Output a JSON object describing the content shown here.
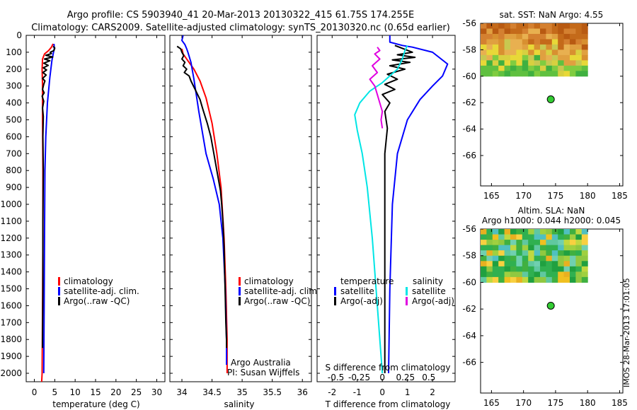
{
  "header": {
    "line1": "Argo profile: CS 5903940_41 20-Mar-2013 20130322_415 61.75S 174.255E",
    "line2": "Climatology: CARS2009. Satellite-adjusted climatology: synTS_20130320.nc (0.65d earlier)"
  },
  "credits": {
    "agency": "Argo Australia",
    "pi": "PI: Susan Wijffels",
    "stamp": "IMOS 28-Mar-2013 17:01:05"
  },
  "colors": {
    "climatology": "#ff0000",
    "satellite": "#0000ff",
    "argo": "#000000",
    "sal_satellite": "#00e5e5",
    "sal_argo": "#e000e0",
    "dot": "#33cc33"
  },
  "chart_data": [
    {
      "type": "line",
      "id": "temperature",
      "xlabel": "temperature (deg C)",
      "xlim": [
        -2,
        32
      ],
      "ylim": [
        2050,
        0
      ],
      "xticks": [
        "0",
        "5",
        "10",
        "15",
        "20",
        "25",
        "30"
      ],
      "xtick_values": [
        0,
        5,
        10,
        15,
        20,
        25,
        30
      ],
      "yticks": [
        "0",
        "100",
        "200",
        "300",
        "400",
        "500",
        "600",
        "700",
        "800",
        "900",
        "1000",
        "1100",
        "1200",
        "1300",
        "1400",
        "1500",
        "1600",
        "1700",
        "1800",
        "1900",
        "2000"
      ],
      "ytick_values": [
        0,
        100,
        200,
        300,
        400,
        500,
        600,
        700,
        800,
        900,
        1000,
        1100,
        1200,
        1300,
        1400,
        1500,
        1600,
        1700,
        1800,
        1900,
        2000
      ],
      "legend": [
        "climatology",
        "satellite-adj. clim.",
        "Argo(..raw -QC)"
      ],
      "series": [
        {
          "name": "climatology",
          "color": "#ff0000",
          "points": [
            [
              4.6,
              50
            ],
            [
              4.2,
              70
            ],
            [
              3.5,
              90
            ],
            [
              2.5,
              110
            ],
            [
              2.0,
              140
            ],
            [
              1.9,
              200
            ],
            [
              2.0,
              300
            ],
            [
              2.0,
              500
            ],
            [
              2.1,
              800
            ],
            [
              2.1,
              1200
            ],
            [
              2.0,
              1600
            ],
            [
              1.9,
              2000
            ],
            [
              1.8,
              2050
            ]
          ]
        },
        {
          "name": "satellite-adj. clim.",
          "color": "#0000ff",
          "points": [
            [
              4.8,
              50
            ],
            [
              4.9,
              75
            ],
            [
              4.7,
              100
            ],
            [
              4.3,
              150
            ],
            [
              3.8,
              250
            ],
            [
              3.2,
              400
            ],
            [
              2.8,
              600
            ],
            [
              2.6,
              800
            ],
            [
              2.5,
              1200
            ],
            [
              2.4,
              1600
            ],
            [
              2.3,
              2000
            ]
          ]
        },
        {
          "name": "Argo(..raw -QC)",
          "color": "#000000",
          "points": [
            [
              4.6,
              65
            ],
            [
              5.0,
              75
            ],
            [
              4.8,
              90
            ],
            [
              3.9,
              100
            ],
            [
              4.2,
              108
            ],
            [
              2.8,
              118
            ],
            [
              4.5,
              128
            ],
            [
              2.5,
              140
            ],
            [
              3.8,
              150
            ],
            [
              2.3,
              165
            ],
            [
              3.4,
              178
            ],
            [
              2.2,
              192
            ],
            [
              3.0,
              205
            ],
            [
              2.1,
              220
            ],
            [
              2.9,
              235
            ],
            [
              2.0,
              255
            ],
            [
              2.6,
              270
            ],
            [
              2.3,
              290
            ],
            [
              2.0,
              320
            ],
            [
              2.4,
              340
            ],
            [
              1.9,
              360
            ],
            [
              2.3,
              390
            ],
            [
              2.0,
              430
            ],
            [
              2.2,
              480
            ],
            [
              2.1,
              600
            ],
            [
              2.2,
              800
            ],
            [
              2.1,
              1100
            ],
            [
              2.1,
              1500
            ],
            [
              2.0,
              1800
            ],
            [
              2.0,
              1850
            ]
          ]
        }
      ]
    },
    {
      "type": "line",
      "id": "salinity",
      "xlabel": "salinity",
      "xlim": [
        33.8,
        36.15
      ],
      "ylim": [
        2050,
        0
      ],
      "xticks": [
        "34",
        "34.5",
        "35",
        "35.5",
        "36"
      ],
      "xtick_values": [
        34,
        34.5,
        35,
        35.5,
        36
      ],
      "legend": [
        "climatology",
        "satellite-adj. clim.",
        "Argo(..raw -QC)"
      ],
      "series": [
        {
          "name": "climatology",
          "color": "#ff0000",
          "points": [
            [
              34.0,
              80
            ],
            [
              34.02,
              110
            ],
            [
              34.1,
              150
            ],
            [
              34.2,
              200
            ],
            [
              34.3,
              270
            ],
            [
              34.4,
              370
            ],
            [
              34.5,
              520
            ],
            [
              34.58,
              700
            ],
            [
              34.65,
              900
            ],
            [
              34.7,
              1200
            ],
            [
              34.73,
              1500
            ],
            [
              34.75,
              1800
            ],
            [
              34.75,
              2000
            ]
          ]
        },
        {
          "name": "satellite-adj. clim.",
          "color": "#0000ff",
          "points": [
            [
              34.02,
              0
            ],
            [
              34.0,
              30
            ],
            [
              34.05,
              55
            ],
            [
              34.08,
              80
            ],
            [
              34.1,
              100
            ],
            [
              34.15,
              160
            ],
            [
              34.2,
              260
            ],
            [
              34.28,
              450
            ],
            [
              34.4,
              700
            ],
            [
              34.52,
              850
            ],
            [
              34.62,
              1000
            ],
            [
              34.68,
              1200
            ],
            [
              34.72,
              1500
            ],
            [
              34.74,
              1800
            ],
            [
              34.74,
              1950
            ]
          ]
        },
        {
          "name": "Argo(..raw -QC)",
          "color": "#000000",
          "points": [
            [
              33.92,
              65
            ],
            [
              33.98,
              80
            ],
            [
              34.0,
              100
            ],
            [
              34.03,
              120
            ],
            [
              34.0,
              140
            ],
            [
              34.05,
              160
            ],
            [
              34.02,
              180
            ],
            [
              34.08,
              200
            ],
            [
              34.04,
              220
            ],
            [
              34.12,
              240
            ],
            [
              34.15,
              270
            ],
            [
              34.22,
              320
            ],
            [
              34.3,
              380
            ],
            [
              34.35,
              440
            ],
            [
              34.42,
              520
            ],
            [
              34.48,
              600
            ],
            [
              34.52,
              680
            ],
            [
              34.56,
              760
            ],
            [
              34.6,
              840
            ],
            [
              34.64,
              920
            ],
            [
              34.66,
              1000
            ],
            [
              34.68,
              1100
            ],
            [
              34.7,
              1250
            ],
            [
              34.71,
              1400
            ],
            [
              34.72,
              1550
            ],
            [
              34.73,
              1700
            ],
            [
              34.74,
              1800
            ],
            [
              34.74,
              1850
            ]
          ]
        }
      ]
    },
    {
      "type": "line",
      "id": "difference",
      "xlabel": "T difference from climatology",
      "xlabel_top": "S difference from climatology",
      "xlim": [
        -2.6,
        2.9
      ],
      "ylim": [
        2050,
        0
      ],
      "xticks": [
        "-2",
        "-1",
        "0",
        "1",
        "2"
      ],
      "xtick_values": [
        -2,
        -1,
        0,
        1,
        2
      ],
      "sticks": [
        "-0.5",
        "-0.25",
        "0",
        "0.25",
        "0.5"
      ],
      "stick_positions_t": [
        -1.85,
        -0.92,
        0,
        0.92,
        1.85
      ],
      "legend_temperature_title": "temperature",
      "legend_salinity_title": "salinity",
      "legend": [
        "satellite",
        "Argo(-adj)",
        "satellite",
        "Argo(-adj)"
      ],
      "series": [
        {
          "name": "satellite",
          "group": "temperature",
          "color": "#0000ff",
          "points": [
            [
              0.3,
              0
            ],
            [
              0.3,
              40
            ],
            [
              0.8,
              60
            ],
            [
              1.2,
              70
            ],
            [
              2.0,
              100
            ],
            [
              2.6,
              170
            ],
            [
              2.4,
              240
            ],
            [
              2.0,
              300
            ],
            [
              1.5,
              380
            ],
            [
              1.0,
              500
            ],
            [
              0.6,
              700
            ],
            [
              0.4,
              1000
            ],
            [
              0.3,
              1500
            ],
            [
              0.25,
              2000
            ]
          ]
        },
        {
          "name": "Argo(-adj)",
          "group": "temperature",
          "color": "#000000",
          "points": [
            [
              0.5,
              60
            ],
            [
              1.2,
              100
            ],
            [
              0.6,
              115
            ],
            [
              1.3,
              130
            ],
            [
              0.4,
              145
            ],
            [
              1.1,
              160
            ],
            [
              0.3,
              180
            ],
            [
              0.9,
              200
            ],
            [
              0.2,
              230
            ],
            [
              0.6,
              260
            ],
            [
              0.1,
              290
            ],
            [
              0.5,
              320
            ],
            [
              0.0,
              350
            ],
            [
              0.3,
              400
            ],
            [
              0.1,
              450
            ],
            [
              0.2,
              550
            ],
            [
              0.1,
              700
            ],
            [
              0.1,
              1000
            ],
            [
              0.1,
              1500
            ],
            [
              0.1,
              2000
            ]
          ]
        },
        {
          "name": "satellite",
          "group": "salinity",
          "color": "#00e5e5",
          "points": [
            [
              1.0,
              60
            ],
            [
              0.9,
              90
            ],
            [
              0.8,
              140
            ],
            [
              0.6,
              200
            ],
            [
              0.0,
              280
            ],
            [
              -0.5,
              330
            ],
            [
              -0.9,
              400
            ],
            [
              -1.1,
              470
            ],
            [
              -1.0,
              560
            ],
            [
              -0.8,
              700
            ],
            [
              -0.6,
              900
            ],
            [
              -0.4,
              1200
            ],
            [
              -0.2,
              1600
            ],
            [
              0.0,
              2000
            ]
          ]
        },
        {
          "name": "Argo(-adj)",
          "group": "salinity",
          "color": "#e000e0",
          "points": [
            [
              -0.2,
              70
            ],
            [
              -0.1,
              90
            ],
            [
              -0.3,
              110
            ],
            [
              -0.1,
              140
            ],
            [
              -0.4,
              180
            ],
            [
              -0.2,
              220
            ],
            [
              -0.5,
              260
            ],
            [
              -0.3,
              300
            ],
            [
              -0.2,
              350
            ],
            [
              -0.1,
              400
            ],
            [
              0.0,
              450
            ],
            [
              -0.05,
              500
            ],
            [
              0.0,
              550
            ]
          ]
        }
      ]
    }
  ],
  "maps": [
    {
      "id": "sst",
      "title": "sat. SST: NaN Argo: 4.55",
      "title2": "",
      "xticks": [
        "165",
        "170",
        "175",
        "180",
        "185"
      ],
      "xtick_values": [
        165,
        170,
        175,
        180,
        185
      ],
      "yticks": [
        "-56",
        "-58",
        "-60",
        "-62",
        "-64",
        "-66"
      ],
      "ytick_values": [
        -56,
        -58,
        -60,
        -62,
        -64,
        -66
      ],
      "xlim": [
        163.3,
        185.5
      ],
      "ylim": [
        -56,
        -68.3
      ],
      "data_lon": [
        163.3,
        180
      ],
      "data_lat": [
        -56,
        -60
      ],
      "palette": "warm",
      "profile_point": [
        174.255,
        -61.75
      ]
    },
    {
      "id": "sla",
      "title": "Altim. SLA: NaN",
      "title2": "Argo h1000: 0.044 h2000: 0.045",
      "xticks": [
        "165",
        "170",
        "175",
        "180",
        "185"
      ],
      "xtick_values": [
        165,
        170,
        175,
        180,
        185
      ],
      "yticks": [
        "-56",
        "-58",
        "-60",
        "-62",
        "-64",
        "-66"
      ],
      "ytick_values": [
        -56,
        -58,
        -60,
        -62,
        -64,
        -66
      ],
      "xlim": [
        163.3,
        185.5
      ],
      "ylim": [
        -56,
        -68.3
      ],
      "data_lon": [
        163.3,
        180
      ],
      "data_lat": [
        -56,
        -60
      ],
      "palette": "cool",
      "profile_point": [
        174.255,
        -61.75
      ]
    }
  ]
}
